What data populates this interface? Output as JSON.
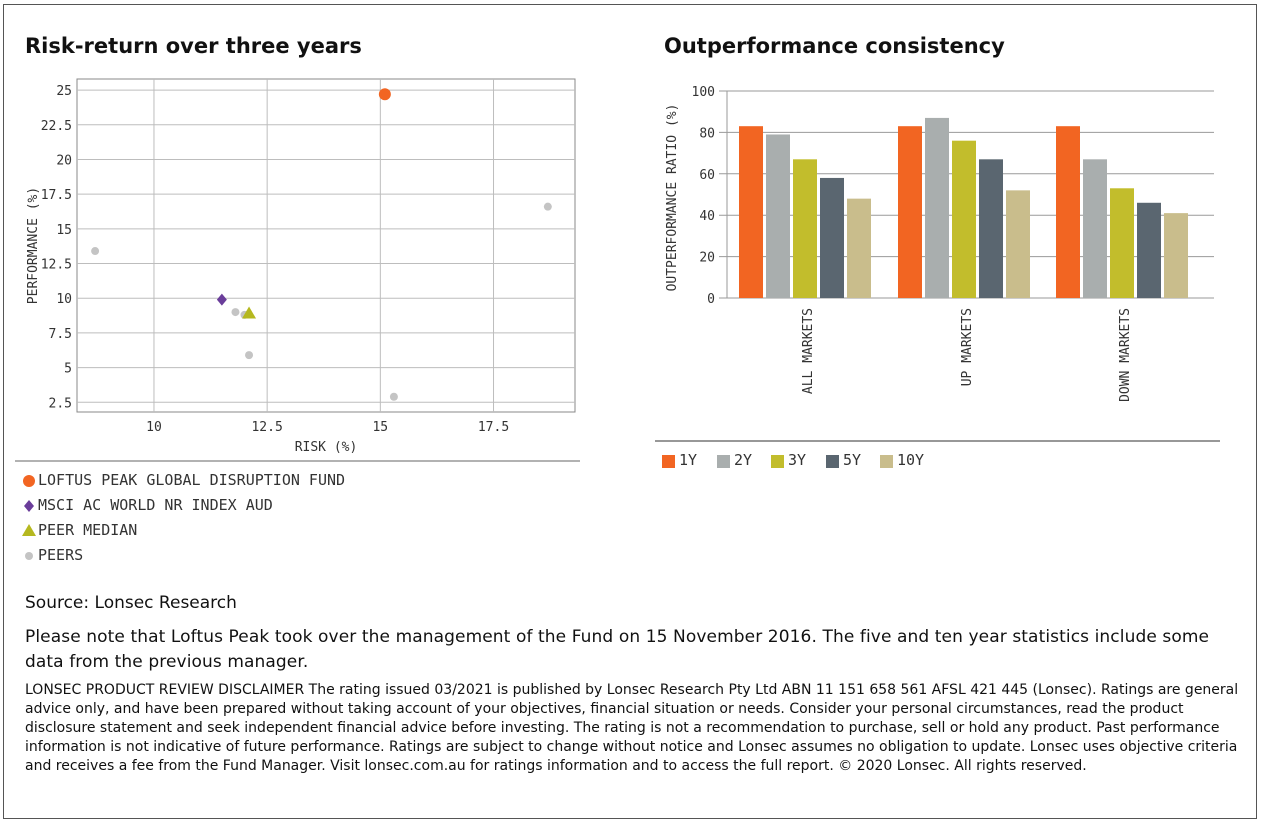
{
  "source": "Source: Lonsec Research",
  "note": "Please note that Loftus Peak took over the management of the Fund on 15 November 2016. The five and ten year statistics include some data from the previous manager.",
  "disclaimer": "LONSEC PRODUCT REVIEW DISCLAIMER The rating issued 03/2021 is published by Lonsec Research Pty Ltd ABN 11 151 658 561 AFSL 421 445 (Lonsec). Ratings are general advice only, and have been prepared without taking account of your objectives, financial situation or needs. Consider your personal circumstances, read the product disclosure statement and seek independent financial advice before investing. The rating is not a recommendation to purchase, sell or hold any product. Past performance information is not indicative of future performance. Ratings are subject to change without notice and Lonsec assumes no obligation to update. Lonsec uses objective criteria and receives a fee from the Fund Manager. Visit lonsec.com.au for ratings information and to access the full report. © 2020 Lonsec. All rights reserved.",
  "colors": {
    "fund": "#f26522",
    "index": "#6a3d9a",
    "median": "#b5b81f",
    "peers": "#c4c4c4",
    "1Y": "#f26522",
    "2Y": "#a9aeae",
    "3Y": "#c2bd2c",
    "5Y": "#5a6670",
    "10Y": "#c9bd8c"
  },
  "chart_data": [
    {
      "type": "scatter",
      "title": "Risk-return over three years",
      "xlabel": "RISK (%)",
      "ylabel": "PERFORMANCE (%)",
      "xlim": [
        8.3,
        19.3
      ],
      "ylim": [
        1.8,
        25.8
      ],
      "xticks": [
        "10",
        "12.5",
        "15",
        "17.5"
      ],
      "xtick_values": [
        10,
        12.5,
        15,
        17.5
      ],
      "yticks": [
        "2.5",
        "5",
        "7.5",
        "10",
        "12.5",
        "15",
        "17.5",
        "20",
        "22.5",
        "25"
      ],
      "ytick_values": [
        2.5,
        5,
        7.5,
        10,
        12.5,
        15,
        17.5,
        20,
        22.5,
        25
      ],
      "grid": true,
      "legend_placement": "below",
      "series": [
        {
          "name": "LOFTUS PEAK GLOBAL DISRUPTION FUND",
          "marker": "circle-large",
          "color_key": "fund",
          "points": [
            {
              "x": 15.1,
              "y": 24.7
            }
          ]
        },
        {
          "name": "MSCI AC WORLD NR INDEX AUD",
          "marker": "diamond",
          "color_key": "index",
          "points": [
            {
              "x": 11.5,
              "y": 9.9
            }
          ]
        },
        {
          "name": "PEER MEDIAN",
          "marker": "triangle",
          "color_key": "median",
          "points": [
            {
              "x": 12.1,
              "y": 8.9
            }
          ]
        },
        {
          "name": "PEERS",
          "marker": "circle-small",
          "color_key": "peers",
          "points": [
            {
              "x": 8.7,
              "y": 13.4
            },
            {
              "x": 18.7,
              "y": 16.6
            },
            {
              "x": 11.8,
              "y": 9.0
            },
            {
              "x": 12.0,
              "y": 8.8
            },
            {
              "x": 12.1,
              "y": 5.9
            },
            {
              "x": 15.3,
              "y": 2.9
            }
          ]
        }
      ]
    },
    {
      "type": "bar",
      "title": "Outperformance consistency",
      "xlabel": "",
      "ylabel": "OUTPERFORMANCE RATIO (%)",
      "ylim": [
        0,
        100
      ],
      "yticks": [
        "0",
        "20",
        "40",
        "60",
        "80",
        "100"
      ],
      "ytick_values": [
        0,
        20,
        40,
        60,
        80,
        100
      ],
      "grid": true,
      "legend_placement": "below",
      "categories": [
        "ALL MARKETS",
        "UP MARKETS",
        "DOWN MARKETS"
      ],
      "series": [
        {
          "name": "1Y",
          "values": [
            83,
            83,
            83
          ]
        },
        {
          "name": "2Y",
          "values": [
            79,
            87,
            67
          ]
        },
        {
          "name": "3Y",
          "values": [
            67,
            76,
            53
          ]
        },
        {
          "name": "5Y",
          "values": [
            58,
            67,
            46
          ]
        },
        {
          "name": "10Y",
          "values": [
            48,
            52,
            41
          ]
        }
      ]
    }
  ]
}
